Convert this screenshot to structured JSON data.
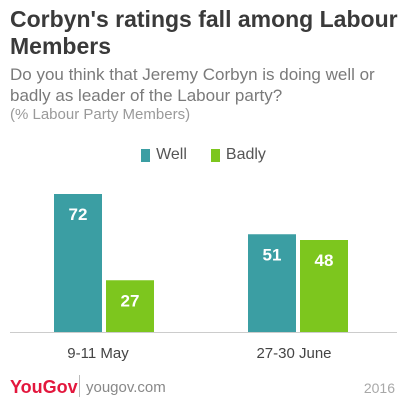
{
  "header": {
    "title": "Corbyn's ratings fall among Labour Members",
    "subtitle": "Do you think that Jeremy Corbyn is doing well or badly as leader of the Labour party?",
    "note": "(% Labour Party Members)"
  },
  "colors": {
    "well": "#3b9ea3",
    "badly": "#7dc61e"
  },
  "chart_data": {
    "type": "bar",
    "categories": [
      "9-11 May",
      "27-30 June"
    ],
    "series": [
      {
        "name": "Well",
        "values": [
          72,
          51
        ]
      },
      {
        "name": "Badly",
        "values": [
          27,
          48
        ]
      }
    ],
    "ylim": [
      0,
      80
    ],
    "legend": "top-center",
    "grid": false
  },
  "footer": {
    "logo": "YouGov",
    "site": "yougov.com",
    "year": "2016"
  }
}
